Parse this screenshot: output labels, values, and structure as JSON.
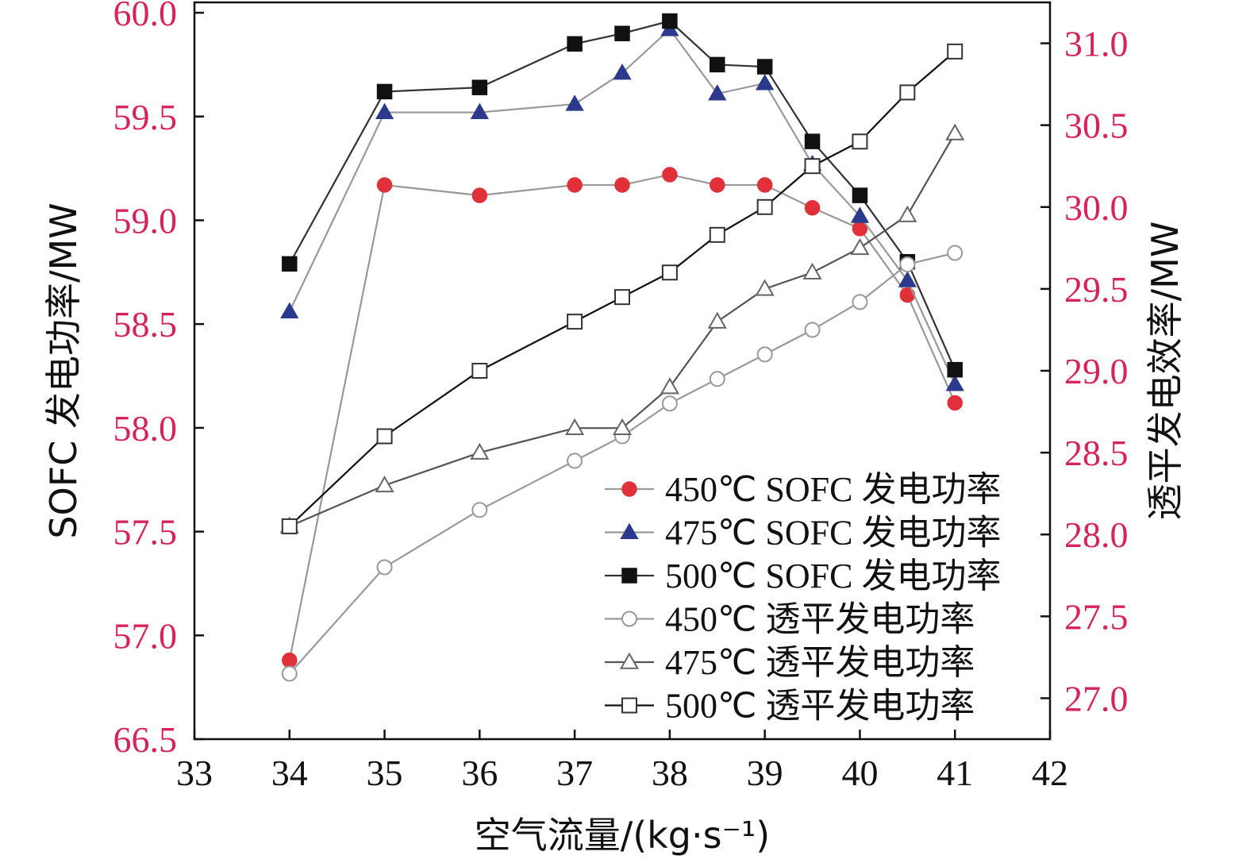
{
  "chart_data": {
    "type": "line",
    "xlabel": "空气流量/(kg·s⁻¹)",
    "ylabel_left": "SOFC 发电功率/MW",
    "ylabel_right": "透平发电效率/MW",
    "x_ticks": [
      "33",
      "34",
      "35",
      "36",
      "37",
      "38",
      "39",
      "40",
      "41",
      "42"
    ],
    "y_left_ticks": [
      "66.5",
      "57.0",
      "57.5",
      "58.0",
      "58.5",
      "59.0",
      "59.5",
      "60.0"
    ],
    "y_right_ticks": [
      "27.0",
      "27.5",
      "28.0",
      "28.5",
      "29.0",
      "29.5",
      "30.0",
      "30.5",
      "31.0"
    ],
    "xlim": [
      33,
      42
    ],
    "ylim_left": [
      56.5,
      60.05
    ],
    "ylim_right": [
      26.75,
      31.25
    ],
    "legend_position": "bottom-right",
    "series": [
      {
        "name": "450℃ SOFC 发电功率",
        "axis": "left",
        "marker": "circle-filled",
        "color": "#e0303a",
        "line_color": "#999999",
        "x": [
          34,
          35,
          36,
          37,
          37.5,
          38,
          38.5,
          39,
          39.5,
          40,
          40.5,
          41
        ],
        "values": [
          56.88,
          59.17,
          59.12,
          59.17,
          59.17,
          59.22,
          59.17,
          59.17,
          59.06,
          58.96,
          58.64,
          58.12
        ]
      },
      {
        "name": "475℃ SOFC 发电功率",
        "axis": "left",
        "marker": "triangle-filled",
        "color": "#2b3a8c",
        "line_color": "#999999",
        "x": [
          34,
          35,
          36,
          37,
          37.5,
          38,
          38.5,
          39,
          39.5,
          40,
          40.5,
          41
        ],
        "values": [
          58.56,
          59.52,
          59.52,
          59.56,
          59.71,
          59.92,
          59.61,
          59.66,
          59.27,
          59.02,
          58.71,
          58.21
        ]
      },
      {
        "name": "500℃ SOFC 发电功率",
        "axis": "left",
        "marker": "square-filled",
        "color": "#111111",
        "line_color": "#333333",
        "x": [
          34,
          35,
          36,
          37,
          37.5,
          38,
          38.5,
          39,
          39.5,
          40,
          40.5,
          41
        ],
        "values": [
          58.79,
          59.62,
          59.64,
          59.85,
          59.9,
          59.96,
          59.75,
          59.74,
          59.38,
          59.12,
          58.8,
          58.28
        ]
      },
      {
        "name": "450℃ 透平发电功率",
        "axis": "right",
        "marker": "circle-open",
        "color": "#999999",
        "line_color": "#999999",
        "x": [
          34,
          35,
          36,
          37,
          37.5,
          38,
          38.5,
          39,
          39.5,
          40,
          40.5,
          41
        ],
        "values": [
          27.15,
          27.8,
          28.15,
          28.45,
          28.6,
          28.8,
          28.95,
          29.1,
          29.25,
          29.42,
          29.65,
          29.72
        ]
      },
      {
        "name": "475℃ 透平发电功率",
        "axis": "right",
        "marker": "triangle-open",
        "color": "#666666",
        "line_color": "#555555",
        "x": [
          34,
          35,
          36,
          37,
          37.5,
          38,
          38.5,
          39,
          39.5,
          40,
          40.5,
          41
        ],
        "values": [
          28.05,
          28.3,
          28.5,
          28.65,
          28.65,
          28.9,
          29.3,
          29.5,
          29.6,
          29.75,
          29.95,
          30.45
        ]
      },
      {
        "name": "500℃ 透平发电功率",
        "axis": "right",
        "marker": "square-open",
        "color": "#333333",
        "line_color": "#111111",
        "x": [
          34,
          35,
          36,
          37,
          37.5,
          38,
          38.5,
          39,
          39.5,
          40,
          40.5,
          41
        ],
        "values": [
          28.05,
          28.6,
          29.0,
          29.3,
          29.45,
          29.6,
          29.83,
          30.0,
          30.25,
          30.4,
          30.7,
          30.95
        ]
      }
    ]
  }
}
